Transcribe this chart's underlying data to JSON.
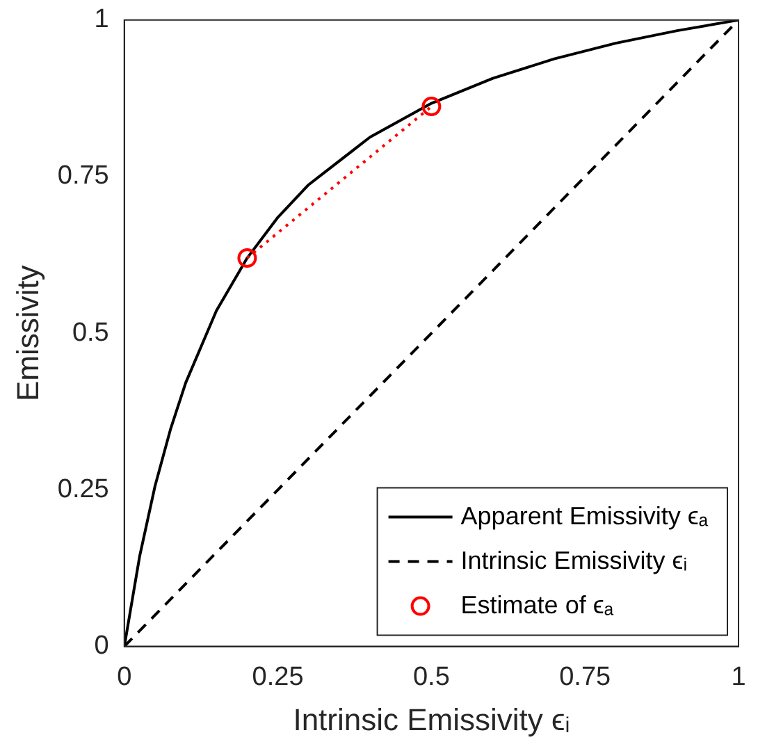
{
  "chart_data": {
    "type": "line",
    "xlabel": "Intrinsic Emissivity ϵᵢ",
    "ylabel": "Emissivity",
    "xlim": [
      0,
      1
    ],
    "ylim": [
      0,
      1
    ],
    "xticks": [
      0,
      0.25,
      0.5,
      0.75,
      1
    ],
    "yticks": [
      0,
      0.25,
      0.5,
      0.75,
      1
    ],
    "grid": false,
    "legend": "bottom right",
    "series": [
      {
        "name": "Apparent Emissivity ϵₐ",
        "color": "#000000",
        "line_style": "solid",
        "marker": "none",
        "x": [
          0,
          0.025,
          0.05,
          0.075,
          0.1,
          0.15,
          0.2,
          0.25,
          0.3,
          0.4,
          0.5,
          0.6,
          0.7,
          0.8,
          0.9,
          1
        ],
        "values": [
          0,
          0.144,
          0.256,
          0.346,
          0.421,
          0.536,
          0.62,
          0.685,
          0.737,
          0.813,
          0.867,
          0.907,
          0.938,
          0.963,
          0.983,
          1
        ]
      },
      {
        "name": "Intrinsic Emissivity ϵᵢ",
        "color": "#000000",
        "line_style": "dashed",
        "marker": "none",
        "x": [
          0,
          1
        ],
        "values": [
          0,
          1
        ]
      },
      {
        "name": "Estimate of ϵₐ",
        "type": "scatter",
        "color": "#ff0000",
        "marker": "circle",
        "x": [
          0.2,
          0.5
        ],
        "values": [
          0.62,
          0.862
        ]
      },
      {
        "color": "#ff0000",
        "line_style": "dotted",
        "marker": "none",
        "x": [
          0.2,
          0.5
        ],
        "values": [
          0.62,
          0.862
        ]
      }
    ]
  }
}
